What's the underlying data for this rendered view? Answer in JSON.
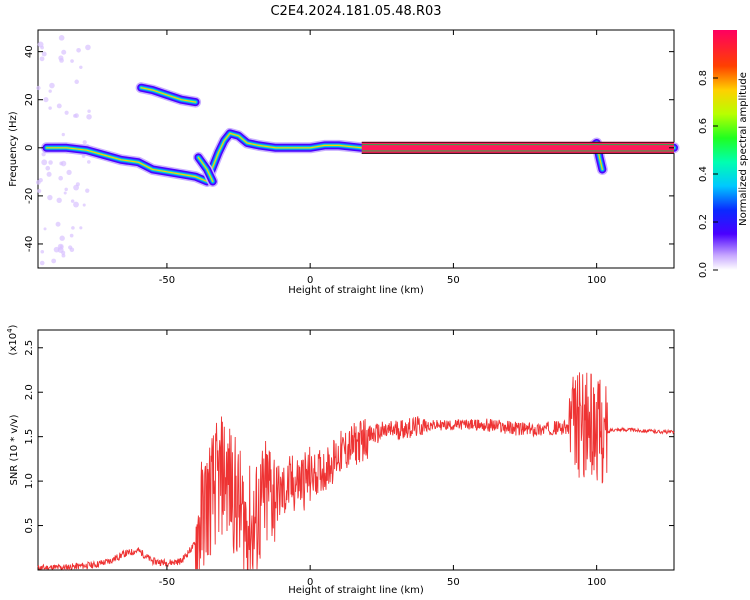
{
  "chart_data": [
    {
      "type": "heatmap",
      "title": "C2E4.2024.181.05.48.R03",
      "xlabel": "Height of straight line (km)",
      "ylabel": "Frequency (Hz)",
      "xlim": [
        -95,
        127
      ],
      "ylim": [
        -50,
        49
      ],
      "xticks": [
        "-50",
        "0",
        "50",
        "100"
      ],
      "yticks": [
        "40",
        "20",
        "0",
        "-20",
        "-40"
      ],
      "colorbar": {
        "label": "Normalized spectral amplitude",
        "range": [
          0,
          1
        ],
        "ticks": [
          "0.0",
          "0.2",
          "0.4",
          "0.6",
          "0.8"
        ]
      },
      "tracks": [
        {
          "name": "main",
          "points": [
            [
              -92,
              0
            ],
            [
              -85,
              0
            ],
            [
              -78,
              -1
            ],
            [
              -72,
              -3
            ],
            [
              -66,
              -5
            ],
            [
              -60,
              -6
            ],
            [
              -55,
              -9
            ],
            [
              -50,
              -10
            ],
            [
              -45,
              -11
            ],
            [
              -40,
              -12
            ],
            [
              -36,
              -14
            ],
            [
              -34,
              -8
            ],
            [
              -32,
              -2
            ],
            [
              -30,
              3
            ],
            [
              -28,
              6
            ],
            [
              -25,
              5
            ],
            [
              -22,
              2
            ],
            [
              -18,
              1
            ],
            [
              -12,
              0
            ],
            [
              -5,
              0
            ],
            [
              0,
              0
            ],
            [
              5,
              1
            ],
            [
              10,
              1
            ],
            [
              18,
              0
            ],
            [
              127,
              0
            ]
          ]
        },
        {
          "name": "upper",
          "points": [
            [
              -59,
              25
            ],
            [
              -55,
              24
            ],
            [
              -50,
              22
            ],
            [
              -45,
              20
            ],
            [
              -40,
              19
            ]
          ]
        },
        {
          "name": "spur",
          "points": [
            [
              -39,
              -4
            ],
            [
              -36,
              -9
            ],
            [
              -34,
              -14
            ]
          ]
        },
        {
          "name": "tail",
          "points": [
            [
              98,
              0
            ],
            [
              100,
              2
            ],
            [
              101,
              -4
            ],
            [
              102,
              -9
            ]
          ]
        }
      ]
    },
    {
      "type": "line",
      "xlabel": "Height of straight line (km)",
      "ylabel": "SNR (10 * v/v)",
      "yscale_label": "(x10",
      "yscale_exp": "4",
      "xlim": [
        -95,
        127
      ],
      "ylim": [
        0,
        2.7
      ],
      "xticks": [
        "-50",
        "0",
        "50",
        "100"
      ],
      "yticks": [
        "0.5",
        "1.0",
        "1.5",
        "2.0",
        "2.5"
      ],
      "color": "#ee3333",
      "series": [
        {
          "points": [
            [
              -95,
              0.02
            ],
            [
              -85,
              0.03
            ],
            [
              -75,
              0.06
            ],
            [
              -70,
              0.1
            ],
            [
              -65,
              0.18
            ],
            [
              -60,
              0.22
            ],
            [
              -55,
              0.1
            ],
            [
              -50,
              0.08
            ],
            [
              -45,
              0.1
            ],
            [
              -40,
              0.3
            ],
            [
              -37,
              0.7
            ],
            [
              -33,
              0.95
            ],
            [
              -30,
              1.1
            ],
            [
              -27,
              0.9
            ],
            [
              -23,
              0.55
            ],
            [
              -20,
              0.45
            ],
            [
              -17,
              0.7
            ],
            [
              -14,
              0.9
            ],
            [
              -10,
              0.85
            ],
            [
              -7,
              0.95
            ],
            [
              -3,
              1.0
            ],
            [
              0,
              1.05
            ],
            [
              3,
              1.1
            ],
            [
              6,
              1.15
            ],
            [
              10,
              1.3
            ],
            [
              15,
              1.4
            ],
            [
              20,
              1.5
            ],
            [
              25,
              1.55
            ],
            [
              30,
              1.58
            ],
            [
              35,
              1.6
            ],
            [
              40,
              1.62
            ],
            [
              45,
              1.63
            ],
            [
              50,
              1.63
            ],
            [
              55,
              1.64
            ],
            [
              60,
              1.63
            ],
            [
              65,
              1.62
            ],
            [
              70,
              1.6
            ],
            [
              75,
              1.58
            ],
            [
              80,
              1.58
            ],
            [
              85,
              1.6
            ],
            [
              90,
              1.6
            ],
            [
              95,
              1.65
            ],
            [
              100,
              1.6
            ],
            [
              103,
              1.5
            ],
            [
              105,
              1.58
            ],
            [
              110,
              1.58
            ],
            [
              115,
              1.57
            ],
            [
              120,
              1.56
            ],
            [
              127,
              1.55
            ]
          ]
        }
      ]
    }
  ]
}
